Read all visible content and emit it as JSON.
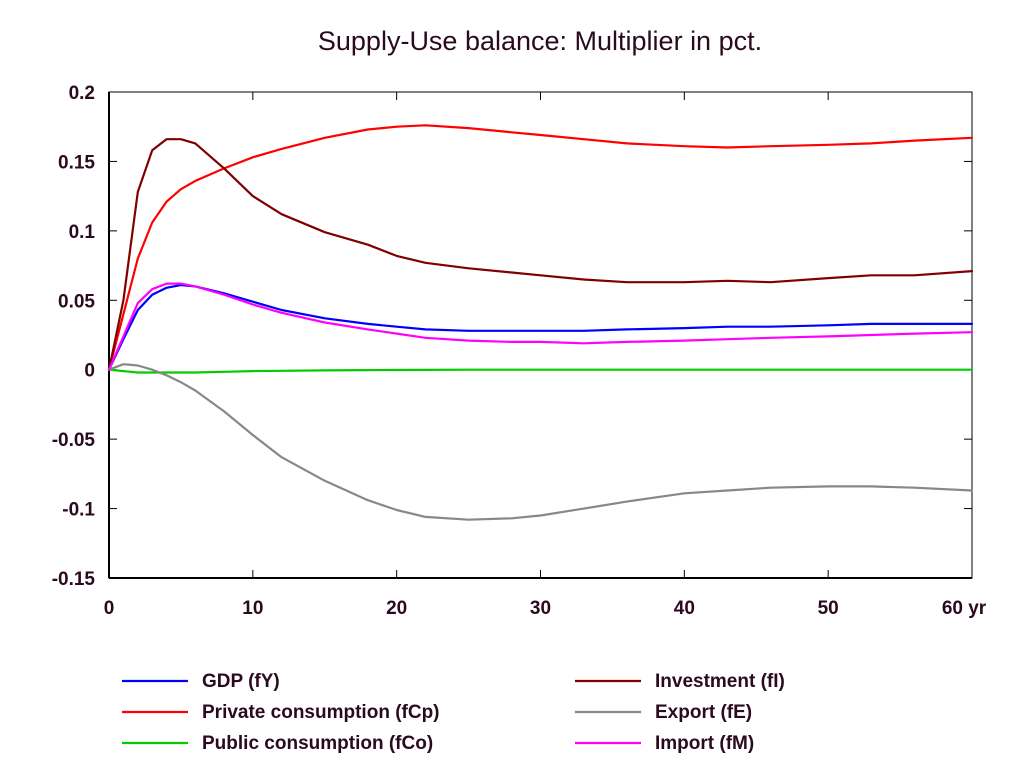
{
  "chart_data": {
    "type": "line",
    "title": "Supply-Use balance: Multiplier in pct.",
    "xlabel": "",
    "ylabel": "",
    "x_unit": "yr",
    "xlim": [
      0,
      60
    ],
    "ylim": [
      -0.15,
      0.2
    ],
    "xticks": [
      0,
      10,
      20,
      30,
      40,
      50,
      60
    ],
    "xtick_labels": [
      "0",
      "10",
      "20",
      "30",
      "40",
      "50",
      "60 yr"
    ],
    "yticks": [
      0.2,
      0.15,
      0.1,
      0.05,
      0,
      -0.05,
      -0.1,
      -0.15
    ],
    "ytick_labels": [
      "0.2",
      "0.15",
      "0.1",
      "0.05",
      "0",
      "-0.05",
      "-0.1",
      "-0.15"
    ],
    "grid": false,
    "legend_position": "bottom",
    "x": [
      0,
      1,
      2,
      3,
      4,
      5,
      6,
      8,
      10,
      12,
      15,
      18,
      20,
      22,
      25,
      28,
      30,
      33,
      36,
      40,
      43,
      46,
      50,
      53,
      56,
      60
    ],
    "series": [
      {
        "name": "GDP (fY)",
        "color": "#0000ff",
        "values": [
          0,
          0.022,
          0.043,
          0.054,
          0.059,
          0.061,
          0.06,
          0.055,
          0.049,
          0.043,
          0.037,
          0.033,
          0.031,
          0.029,
          0.028,
          0.028,
          0.028,
          0.028,
          0.029,
          0.03,
          0.031,
          0.031,
          0.032,
          0.033,
          0.033,
          0.033
        ]
      },
      {
        "name": "Private consumption (fCp)",
        "color": "#ff0000",
        "values": [
          0,
          0.04,
          0.08,
          0.106,
          0.121,
          0.13,
          0.136,
          0.145,
          0.153,
          0.159,
          0.167,
          0.173,
          0.175,
          0.176,
          0.174,
          0.171,
          0.169,
          0.166,
          0.163,
          0.161,
          0.16,
          0.161,
          0.162,
          0.163,
          0.165,
          0.167
        ]
      },
      {
        "name": "Public consumption (fCo)",
        "color": "#00cc00",
        "values": [
          0,
          -0.001,
          -0.002,
          -0.002,
          -0.002,
          -0.002,
          -0.002,
          -0.0015,
          -0.001,
          -0.0008,
          -0.0005,
          -0.0003,
          -0.0002,
          -0.0001,
          0,
          0,
          0,
          0,
          0,
          0,
          0,
          0,
          0,
          0,
          0,
          0
        ]
      },
      {
        "name": "Investment (fI)",
        "color": "#800000",
        "values": [
          0,
          0.05,
          0.128,
          0.158,
          0.166,
          0.166,
          0.163,
          0.145,
          0.125,
          0.112,
          0.099,
          0.09,
          0.082,
          0.077,
          0.073,
          0.07,
          0.068,
          0.065,
          0.063,
          0.063,
          0.064,
          0.063,
          0.066,
          0.068,
          0.068,
          0.071
        ]
      },
      {
        "name": "Export (fE)",
        "color": "#888888",
        "values": [
          0,
          0.004,
          0.003,
          0.0,
          -0.004,
          -0.009,
          -0.015,
          -0.03,
          -0.047,
          -0.063,
          -0.08,
          -0.094,
          -0.101,
          -0.106,
          -0.108,
          -0.107,
          -0.105,
          -0.1,
          -0.095,
          -0.089,
          -0.087,
          -0.085,
          -0.084,
          -0.084,
          -0.085,
          -0.087
        ]
      },
      {
        "name": "Import (fM)",
        "color": "#ff00ff",
        "values": [
          0,
          0.024,
          0.048,
          0.058,
          0.062,
          0.062,
          0.06,
          0.054,
          0.047,
          0.041,
          0.034,
          0.029,
          0.026,
          0.023,
          0.021,
          0.02,
          0.02,
          0.019,
          0.02,
          0.021,
          0.022,
          0.023,
          0.024,
          0.025,
          0.026,
          0.027
        ]
      }
    ]
  }
}
